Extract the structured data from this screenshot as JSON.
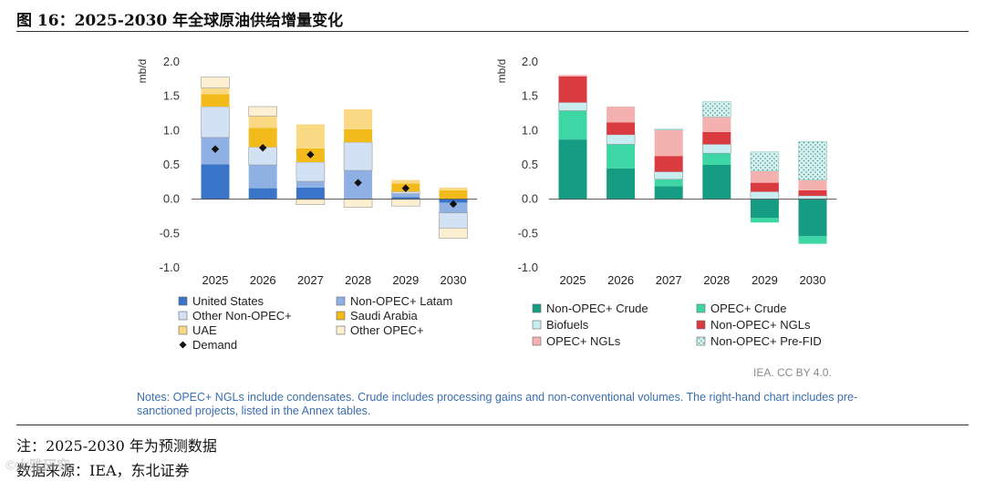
{
  "figure_title": "图 16：2025-2030 年全球原油供给增量变化",
  "credit": "IEA. CC BY 4.0.",
  "notes": "Notes: OPEC+ NGLs include condensates. Crude includes processing gains and non-conventional volumes. The right-hand chart includes pre-sanctioned projects, listed in the Annex tables.",
  "footnote_note": "注：2025-2030 年为预测数据",
  "footnote_source": "数据来源：IEA，东北证券",
  "watermark": "©大雅研究",
  "chart_data": [
    {
      "type": "bar",
      "stacked": true,
      "ylabel": "mb/d",
      "ylim": [
        -1.0,
        2.0
      ],
      "yticks": [
        2.0,
        1.5,
        1.0,
        0.5,
        0.0,
        -0.5,
        -1.0
      ],
      "ytick_labels": [
        "2.0",
        "1.5",
        "1.0",
        "0.5",
        "0.0",
        "-0.5",
        "-1.0"
      ],
      "categories": [
        "2025",
        "2026",
        "2027",
        "2028",
        "2029",
        "2030"
      ],
      "series": [
        {
          "name": "United States",
          "color": "#3A74C9",
          "pattern": "solid",
          "values": [
            0.51,
            0.16,
            0.17,
            0.0,
            0.03,
            -0.05
          ]
        },
        {
          "name": "Non-OPEC+ Latam",
          "color": "#8FB0E3",
          "pattern": "solid",
          "values": [
            0.39,
            0.34,
            0.09,
            0.42,
            0.05,
            -0.15
          ]
        },
        {
          "name": "Other Non-OPEC+",
          "color": "#D3E1F5",
          "pattern": "solid",
          "values": [
            0.45,
            0.26,
            0.28,
            0.41,
            0.03,
            -0.22
          ]
        },
        {
          "name": "Saudi Arabia",
          "color": "#F3BA1B",
          "pattern": "solid",
          "values": [
            0.18,
            0.28,
            0.2,
            0.19,
            0.12,
            0.13
          ]
        },
        {
          "name": "UAE",
          "color": "#F9D984",
          "pattern": "solid",
          "values": [
            0.09,
            0.17,
            0.35,
            0.29,
            0.05,
            0.04
          ]
        },
        {
          "name": "Other OPEC+",
          "color": "#FCEFD2",
          "pattern": "solid",
          "values": [
            0.16,
            0.14,
            -0.08,
            -0.12,
            -0.1,
            -0.15
          ]
        }
      ],
      "markers": {
        "name": "Demand",
        "color": "#111111",
        "values": [
          0.73,
          0.75,
          0.65,
          0.24,
          0.16,
          -0.07
        ]
      },
      "legend_placement": "bottom",
      "legend_order": [
        "United States",
        "Non-OPEC+ Latam",
        "Other Non-OPEC+",
        "Saudi Arabia",
        "UAE",
        "Other OPEC+",
        "Demand"
      ]
    },
    {
      "type": "bar",
      "stacked": true,
      "ylabel": "mb/d",
      "ylim": [
        -1.0,
        2.0
      ],
      "yticks": [
        2.0,
        1.5,
        1.0,
        0.5,
        0.0,
        -0.5,
        -1.0
      ],
      "ytick_labels": [
        "2.0",
        "1.5",
        "1.0",
        "0.5",
        "0.0",
        "-0.5",
        "-1.0"
      ],
      "categories": [
        "2025",
        "2026",
        "2027",
        "2028",
        "2029",
        "2030"
      ],
      "series": [
        {
          "name": "Non-OPEC+ Crude",
          "color": "#169C83",
          "pattern": "solid",
          "values": [
            0.87,
            0.45,
            0.19,
            0.5,
            -0.27,
            -0.54
          ]
        },
        {
          "name": "OPEC+ Crude",
          "color": "#3FD6A5",
          "pattern": "solid",
          "values": [
            0.42,
            0.35,
            0.1,
            0.17,
            -0.07,
            -0.11
          ]
        },
        {
          "name": "Biofuels",
          "color": "#C8EEF1",
          "pattern": "solid",
          "values": [
            0.12,
            0.14,
            0.11,
            0.13,
            0.11,
            0.05
          ]
        },
        {
          "name": "Non-OPEC+ NGLs",
          "color": "#D93B41",
          "pattern": "solid",
          "values": [
            0.38,
            0.18,
            0.23,
            0.18,
            0.13,
            0.08
          ]
        },
        {
          "name": "OPEC+ NGLs",
          "color": "#F5B0B0",
          "pattern": "solid",
          "values": [
            0.02,
            0.23,
            0.38,
            0.22,
            0.17,
            0.15
          ]
        },
        {
          "name": "Non-OPEC+ Pre-FID",
          "color": "#D5F2F0",
          "pattern": "dots",
          "values": [
            0.0,
            0.0,
            0.01,
            0.22,
            0.28,
            0.56
          ]
        }
      ],
      "legend_placement": "bottom",
      "legend_order": [
        "Non-OPEC+ Crude",
        "OPEC+ Crude",
        "Biofuels",
        "Non-OPEC+ NGLs",
        "OPEC+ NGLs",
        "Non-OPEC+ Pre-FID"
      ]
    }
  ]
}
